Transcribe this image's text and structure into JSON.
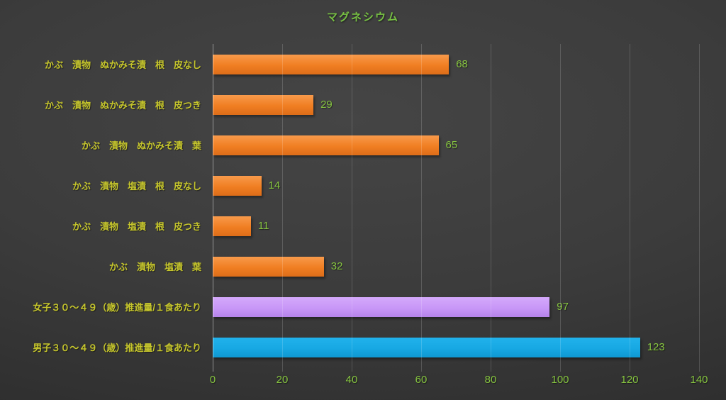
{
  "chart_data": {
    "type": "bar",
    "orientation": "horizontal",
    "title": "マグネシウム",
    "categories": [
      "かぶ　漬物　ぬかみそ漬　根　皮なし",
      "かぶ　漬物　ぬかみそ漬　根　皮つき",
      "かぶ　漬物　ぬかみそ漬　葉",
      "かぶ　漬物　塩漬　根　皮なし",
      "かぶ　漬物　塩漬　根　皮つき",
      "かぶ　漬物　塩漬　葉",
      "女子３０～４９（歳）推進量/１食あたり",
      "男子３０～４９（歳）推進量/１食あたり"
    ],
    "values": [
      68,
      29,
      65,
      14,
      11,
      32,
      97,
      123
    ],
    "bar_colors": [
      "orange",
      "orange",
      "orange",
      "orange",
      "orange",
      "orange",
      "purple",
      "blue"
    ],
    "value_labels_shown": true,
    "xlabel": "",
    "ylabel": "",
    "xlim": [
      0,
      140
    ],
    "xticks": [
      0,
      20,
      40,
      60,
      80,
      100,
      120,
      140
    ],
    "grid": true,
    "legend": "none"
  },
  "colors": {
    "title_text": "#77c043",
    "category_label_text": "#c6c62c",
    "value_label_text": "#86c440",
    "tick_label_text": "#86c440",
    "bar_orange": "#f07e22",
    "bar_purple": "#c897f7",
    "bar_blue": "#17a8e3",
    "gridline": "rgba(255,255,255,0.16)",
    "axis_line": "rgba(255,255,255,0.45)"
  }
}
